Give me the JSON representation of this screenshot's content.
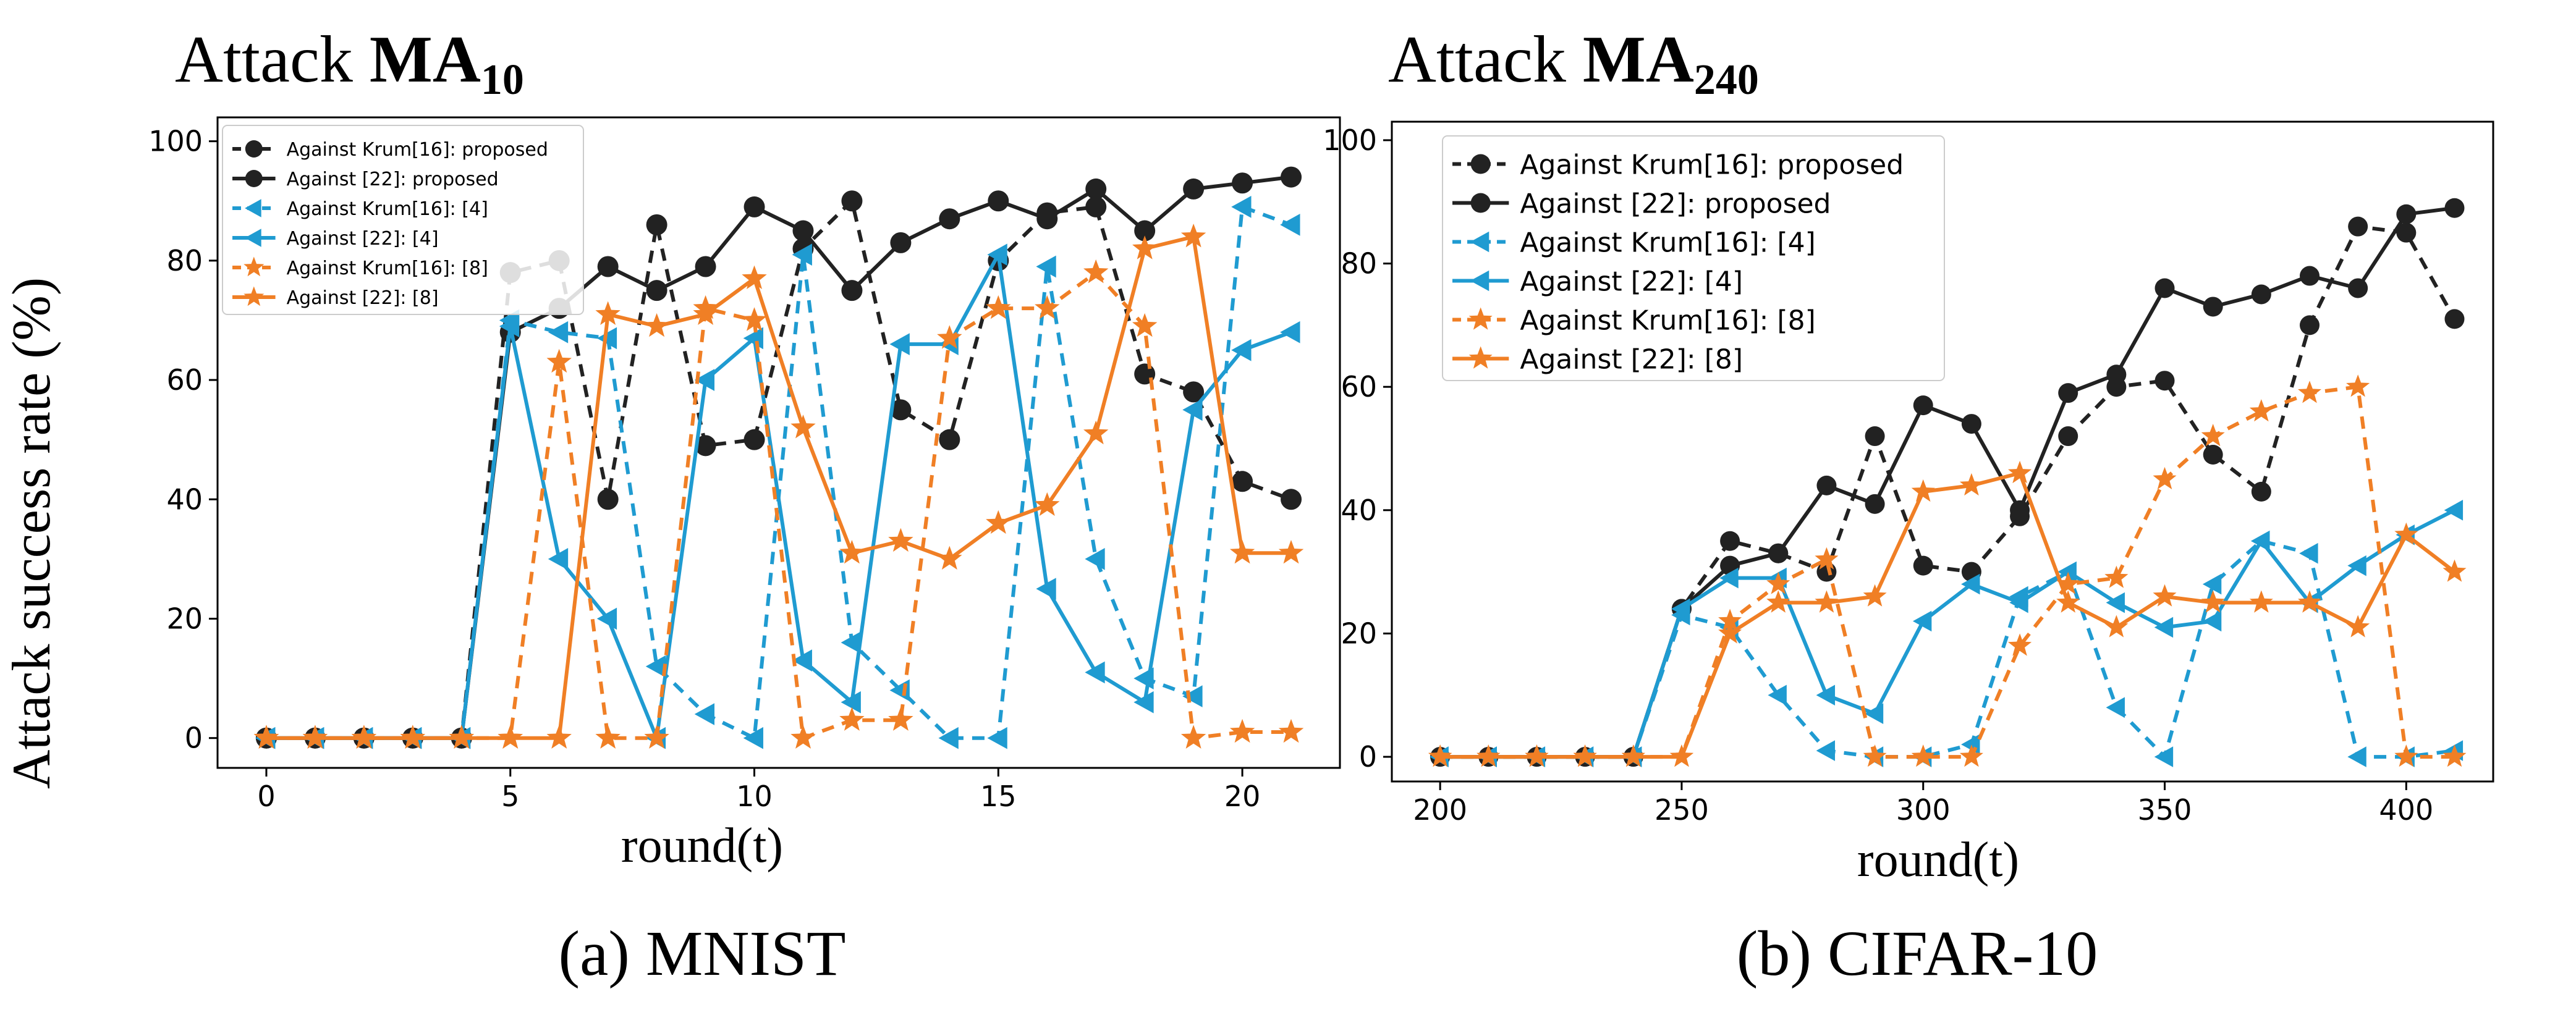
{
  "colors": {
    "black": "#222222",
    "blue": "#1f9bd1",
    "orange": "#f07f25"
  },
  "shared": {
    "ylabel": "Attack success rate (%)",
    "xlabel": "round(t)"
  },
  "chart_data": [
    {
      "type": "line",
      "title_prefix": "Attack ",
      "title_main": "MA",
      "title_sub": "10",
      "caption": "(a) MNIST",
      "xlabel": "round(t)",
      "ylabel": "Attack success rate (%)",
      "xlim": [
        -1,
        22
      ],
      "ylim": [
        -5,
        104
      ],
      "xticks": [
        0,
        5,
        10,
        15,
        20
      ],
      "yticks": [
        0,
        20,
        40,
        60,
        80,
        100
      ],
      "legend": "top-left",
      "x": [
        0,
        1,
        2,
        3,
        4,
        5,
        6,
        7,
        8,
        9,
        10,
        11,
        12,
        13,
        14,
        15,
        16,
        17,
        18,
        19,
        20,
        21
      ],
      "series": [
        {
          "name": "Against Krum[16]: proposed",
          "color": "black",
          "dash": true,
          "marker": "circle",
          "values": [
            0,
            0,
            0,
            0,
            0,
            78,
            80,
            40,
            86,
            49,
            50,
            82,
            90,
            55,
            50,
            80,
            88,
            89,
            61,
            58,
            43,
            40
          ]
        },
        {
          "name": "Against [22]: proposed",
          "color": "black",
          "dash": false,
          "marker": "circle",
          "values": [
            0,
            0,
            0,
            0,
            0,
            68,
            72,
            79,
            75,
            79,
            89,
            85,
            75,
            83,
            87,
            90,
            87,
            92,
            85,
            92,
            93,
            94
          ]
        },
        {
          "name": "Against Krum[16]: [4]",
          "color": "blue",
          "dash": true,
          "marker": "triangle",
          "values": [
            0,
            0,
            0,
            0,
            0,
            70,
            68,
            67,
            12,
            4,
            0,
            81,
            16,
            8,
            0,
            0,
            79,
            30,
            10,
            7,
            89,
            86
          ]
        },
        {
          "name": "Against [22]: [4]",
          "color": "blue",
          "dash": false,
          "marker": "triangle",
          "values": [
            0,
            0,
            0,
            0,
            0,
            69,
            30,
            20,
            0,
            60,
            67,
            13,
            6,
            66,
            66,
            81,
            25,
            11,
            6,
            55,
            65,
            68
          ]
        },
        {
          "name": "Against Krum[16]: [8]",
          "color": "orange",
          "dash": true,
          "marker": "star",
          "values": [
            0,
            0,
            0,
            0,
            0,
            0,
            63,
            0,
            0,
            72,
            70,
            0,
            3,
            3,
            67,
            72,
            72,
            78,
            69,
            0,
            1,
            1
          ]
        },
        {
          "name": "Against [22]: [8]",
          "color": "orange",
          "dash": false,
          "marker": "star",
          "values": [
            0,
            0,
            0,
            0,
            0,
            0,
            0,
            71,
            69,
            71,
            77,
            52,
            31,
            33,
            30,
            36,
            39,
            51,
            82,
            84,
            31,
            31
          ]
        }
      ]
    },
    {
      "type": "line",
      "title_prefix": "Attack ",
      "title_main": "MA",
      "title_sub": "240",
      "caption": "(b) CIFAR-10",
      "xlabel": "round(t)",
      "ylabel": "",
      "xlim": [
        190,
        418
      ],
      "ylim": [
        -4,
        103
      ],
      "xticks": [
        200,
        250,
        300,
        350,
        400
      ],
      "yticks": [
        0,
        20,
        40,
        60,
        80,
        100
      ],
      "legend": "top-left",
      "x": [
        200,
        210,
        220,
        230,
        240,
        250,
        260,
        270,
        280,
        290,
        300,
        310,
        320,
        330,
        340,
        350,
        360,
        370,
        380,
        390,
        400,
        410
      ],
      "series": [
        {
          "name": "Against Krum[16]: proposed",
          "color": "black",
          "dash": true,
          "marker": "circle",
          "values": [
            0,
            0,
            0,
            0,
            0,
            24,
            35,
            33,
            30,
            52,
            31,
            30,
            39,
            52,
            60,
            61,
            49,
            43,
            70,
            86,
            85,
            71
          ]
        },
        {
          "name": "Against [22]: proposed",
          "color": "black",
          "dash": false,
          "marker": "circle",
          "values": [
            0,
            0,
            0,
            0,
            0,
            24,
            31,
            33,
            44,
            41,
            57,
            54,
            40,
            59,
            62,
            76,
            73,
            75,
            78,
            76,
            88,
            89
          ]
        },
        {
          "name": "Against Krum[16]: [4]",
          "color": "blue",
          "dash": true,
          "marker": "triangle",
          "values": [
            0,
            0,
            0,
            0,
            0,
            23,
            21,
            10,
            1,
            0,
            0,
            2,
            26,
            30,
            8,
            0,
            28,
            35,
            33,
            0,
            0,
            1
          ]
        },
        {
          "name": "Against [22]: [4]",
          "color": "blue",
          "dash": false,
          "marker": "triangle",
          "values": [
            0,
            0,
            0,
            0,
            0,
            24,
            29,
            29,
            10,
            7,
            22,
            28,
            25,
            30,
            25,
            21,
            22,
            35,
            25,
            31,
            36,
            40
          ]
        },
        {
          "name": "Against Krum[16]: [8]",
          "color": "orange",
          "dash": true,
          "marker": "star",
          "values": [
            0,
            0,
            0,
            0,
            0,
            0,
            22,
            28,
            32,
            0,
            0,
            0,
            18,
            28,
            29,
            45,
            52,
            56,
            59,
            60,
            0,
            0
          ]
        },
        {
          "name": "Against [22]: [8]",
          "color": "orange",
          "dash": false,
          "marker": "star",
          "values": [
            0,
            0,
            0,
            0,
            0,
            0,
            20,
            25,
            25,
            26,
            43,
            44,
            46,
            25,
            21,
            26,
            25,
            25,
            25,
            21,
            36,
            30
          ]
        }
      ]
    }
  ]
}
